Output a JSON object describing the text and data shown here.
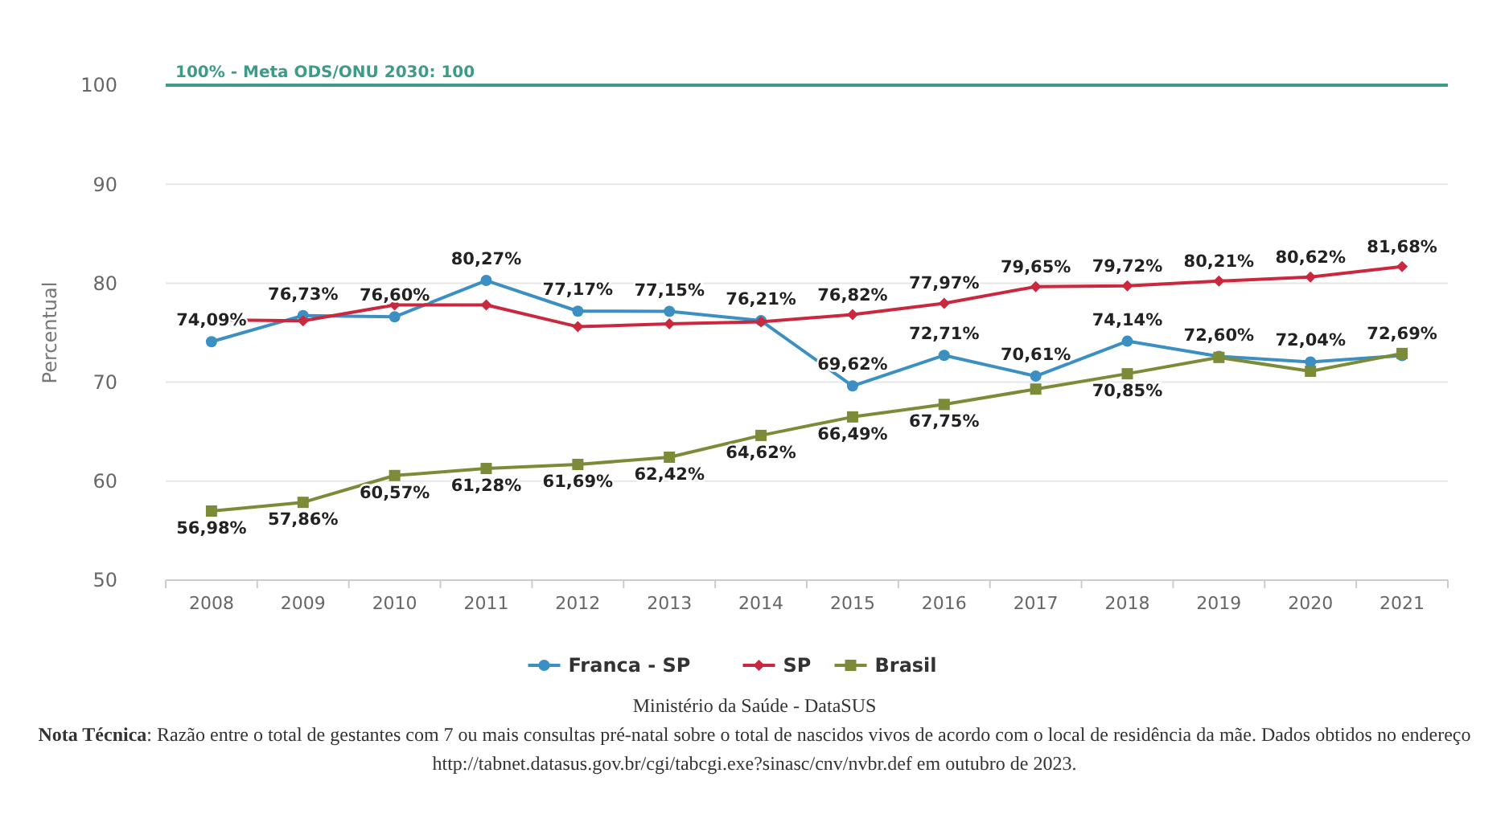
{
  "chart_data": {
    "type": "line",
    "ylabel": "Percentual",
    "categories": [
      "2008",
      "2009",
      "2010",
      "2011",
      "2012",
      "2013",
      "2014",
      "2015",
      "2016",
      "2017",
      "2018",
      "2019",
      "2020",
      "2021"
    ],
    "series": [
      {
        "name": "Franca - SP",
        "color": "#3b8fc2",
        "marker": "circle",
        "values": [
          74.09,
          76.73,
          76.6,
          80.27,
          77.17,
          77.15,
          76.21,
          69.62,
          72.71,
          70.61,
          74.14,
          72.6,
          72.04,
          72.69
        ],
        "value_labels": [
          "74,09%",
          "76,73%",
          "76,60%",
          "80,27%",
          "77,17%",
          "77,15%",
          "76,21%",
          "69,62%",
          "72,71%",
          "70,61%",
          "74,14%",
          "72,60%",
          "72,04%",
          "72,69%"
        ]
      },
      {
        "name": "SP",
        "color": "#c9283e",
        "marker": "diamond",
        "values": [
          76.3,
          76.2,
          77.8,
          77.8,
          75.6,
          75.9,
          76.1,
          76.82,
          77.97,
          79.65,
          79.72,
          80.21,
          80.62,
          81.68
        ],
        "value_labels": [
          null,
          null,
          null,
          null,
          null,
          null,
          null,
          "76,82%",
          "77,97%",
          "79,65%",
          "79,72%",
          "80,21%",
          "80,62%",
          "81,68%"
        ]
      },
      {
        "name": "Brasil",
        "color": "#7b8b38",
        "marker": "square",
        "values": [
          56.98,
          57.86,
          60.57,
          61.28,
          61.69,
          62.42,
          64.62,
          66.49,
          67.75,
          69.3,
          70.85,
          72.5,
          71.1,
          72.9
        ],
        "value_labels": [
          "56,98%",
          "57,86%",
          "60,57%",
          "61,28%",
          "61,69%",
          "62,42%",
          "64,62%",
          "66,49%",
          "67,75%",
          null,
          "70,85%",
          null,
          null,
          null
        ]
      }
    ],
    "ylim": [
      50,
      100
    ],
    "yticks": [
      50,
      60,
      70,
      80,
      90,
      100
    ],
    "grid": "y",
    "legend": "bottom",
    "line_style": "solid",
    "ref_lines": [
      {
        "axis": "y",
        "value": 100,
        "label": "100% - Meta ODS/ONU 2030: 100",
        "color": "#3d9b88"
      }
    ],
    "annotations": [
      "Ministério da Saúde - DataSUS",
      "Nota Técnica: Razão entre o total de gestantes com 7 ou mais consultas pré-natal sobre o total de nascidos vivos de acordo com o local de residência da mãe. Dados obtidos no endereço http://tabnet.datasus.gov.br/cgi/tabcgi.exe?sinasc/cnv/nvbr.def em outubro de 2023."
    ]
  }
}
